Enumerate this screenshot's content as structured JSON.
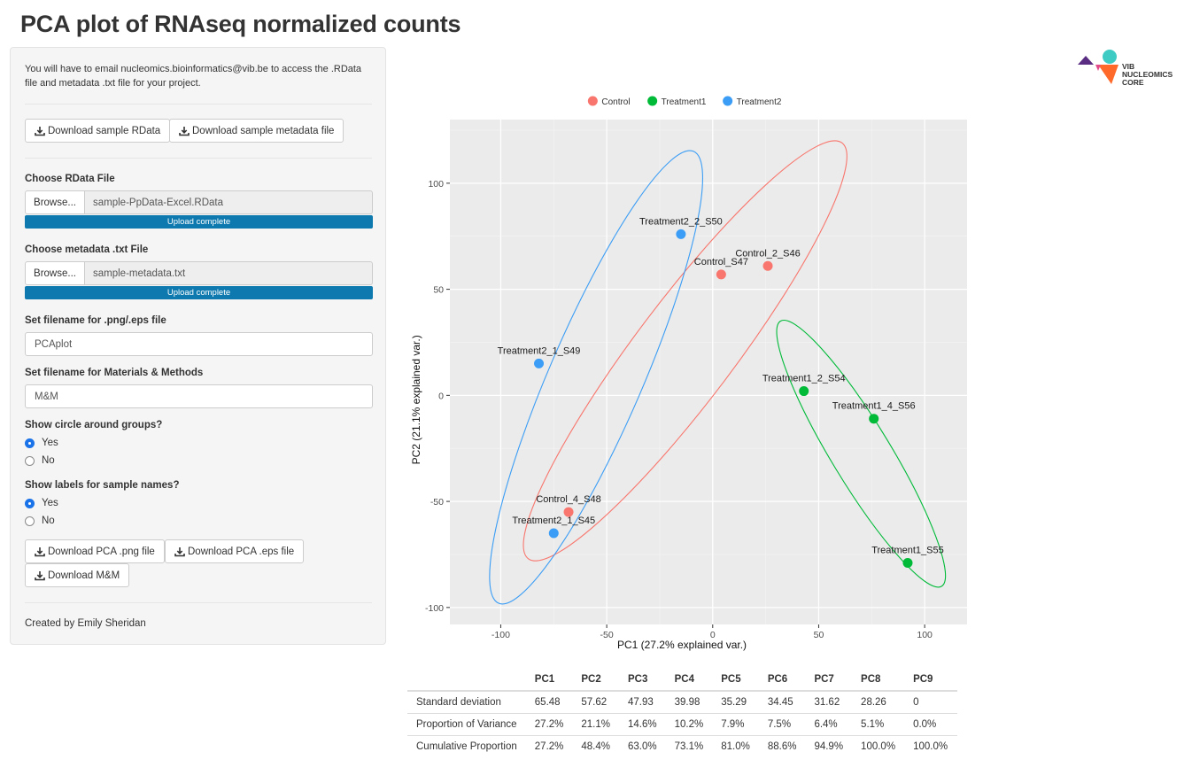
{
  "page": {
    "title": "PCA plot of RNAseq normalized counts"
  },
  "sidebar": {
    "note": "You will have to email nucleomics.bioinformatics@vib.be to access the .RData file and metadata .txt file for your project.",
    "download_rdata_label": "Download sample RData",
    "download_metadata_label": "Download sample metadata file",
    "rdata_label": "Choose RData File",
    "rdata_browse": "Browse...",
    "rdata_filename": "sample-PpData-Excel.RData",
    "rdata_progress": "Upload complete",
    "metadata_label": "Choose metadata .txt File",
    "metadata_browse": "Browse...",
    "metadata_filename": "sample-metadata.txt",
    "metadata_progress": "Upload complete",
    "png_filename_label": "Set filename for .png/.eps file",
    "png_filename_value": "PCAplot",
    "mm_filename_label": "Set filename for Materials & Methods",
    "mm_filename_value": "M&M",
    "circle_label": "Show circle around groups?",
    "circle_options": [
      "Yes",
      "No"
    ],
    "circle_selected": "Yes",
    "labels_label": "Show labels for sample names?",
    "labels_options": [
      "Yes",
      "No"
    ],
    "labels_selected": "Yes",
    "download_png_label": "Download PCA .png file",
    "download_eps_label": "Download PCA .eps file",
    "download_mm_label": "Download M&M",
    "credit": "Created by Emily Sheridan"
  },
  "logo": {
    "lines": [
      "VIB",
      "NUCLEOMICS",
      "CORE"
    ]
  },
  "chart_data": {
    "type": "scatter",
    "xlabel": "PC1 (27.2% explained var.)",
    "ylabel": "PC2 (21.1% explained var.)",
    "xlim": [
      -124,
      120
    ],
    "ylim": [
      -108,
      130
    ],
    "xticks": [
      -100,
      -50,
      0,
      50,
      100
    ],
    "yticks": [
      -100,
      -50,
      0,
      50,
      100
    ],
    "grid": true,
    "legend_position": "top",
    "panel_color": "#ebebeb",
    "series": [
      {
        "name": "Control",
        "color": "#f8766d",
        "points": [
          {
            "label": "Control_S47",
            "x": 4,
            "y": 57
          },
          {
            "label": "Control_2_S46",
            "x": 26,
            "y": 61
          },
          {
            "label": "Control_4_S48",
            "x": -68,
            "y": -55
          }
        ]
      },
      {
        "name": "Treatment1",
        "color": "#00ba38",
        "points": [
          {
            "label": "Treatment1_2_S54",
            "x": 43,
            "y": 2
          },
          {
            "label": "Treatment1_4_S56",
            "x": 76,
            "y": -11
          },
          {
            "label": "Treatment1_S55",
            "x": 92,
            "y": -79
          }
        ]
      },
      {
        "name": "Treatment2",
        "color": "#3b9df5",
        "points": [
          {
            "label": "Treatment2_2_S50",
            "x": -15,
            "y": 76
          },
          {
            "label": "Treatment2_1_S49",
            "x": -82,
            "y": 15
          },
          {
            "label": "Treatment2_1_S45",
            "x": -75,
            "y": -65
          }
        ]
      }
    ],
    "ellipses": [
      {
        "series": "Control",
        "points": [
          [
            -87,
            -77
          ],
          [
            61,
            119
          ]
        ]
      },
      {
        "series": "Treatment1",
        "points": [
          [
            32,
            35
          ],
          [
            108,
            -90
          ]
        ]
      },
      {
        "series": "Treatment2",
        "points": [
          [
            -9,
            115
          ],
          [
            -101,
            -98
          ]
        ]
      }
    ]
  },
  "stats_table": {
    "headers": [
      "",
      "PC1",
      "PC2",
      "PC3",
      "PC4",
      "PC5",
      "PC6",
      "PC7",
      "PC8",
      "PC9"
    ],
    "rows": [
      [
        "Standard deviation",
        "65.48",
        "57.62",
        "47.93",
        "39.98",
        "35.29",
        "34.45",
        "31.62",
        "28.26",
        "0"
      ],
      [
        "Proportion of Variance",
        "27.2%",
        "21.1%",
        "14.6%",
        "10.2%",
        "7.9%",
        "7.5%",
        "6.4%",
        "5.1%",
        "0.0%"
      ],
      [
        "Cumulative Proportion",
        "27.2%",
        "48.4%",
        "63.0%",
        "73.1%",
        "81.0%",
        "88.6%",
        "94.9%",
        "100.0%",
        "100.0%"
      ]
    ]
  }
}
